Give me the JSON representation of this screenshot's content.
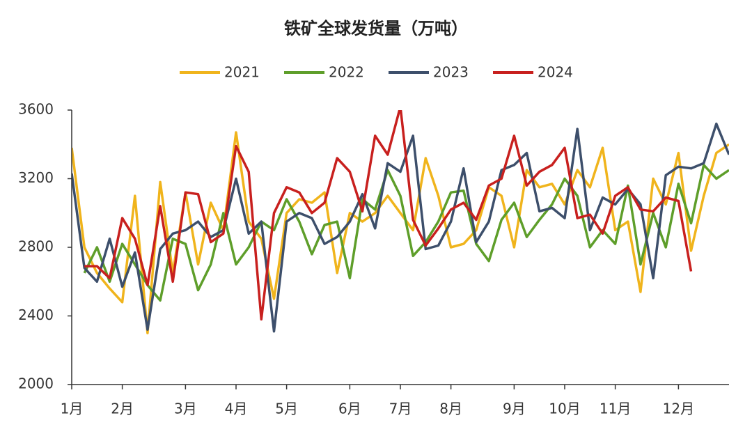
{
  "chart_data": {
    "type": "line",
    "title": "铁矿全球发货量（万吨）",
    "categories": [
      "1月",
      null,
      null,
      null,
      "2月",
      null,
      null,
      null,
      null,
      "3月",
      null,
      null,
      null,
      "4月",
      null,
      null,
      null,
      "5月",
      null,
      null,
      null,
      null,
      "6月",
      null,
      null,
      null,
      "7月",
      null,
      null,
      null,
      "8月",
      null,
      null,
      null,
      null,
      "9月",
      null,
      null,
      null,
      "10月",
      null,
      null,
      null,
      "11月",
      null,
      null,
      null,
      null,
      "12月",
      null,
      null,
      null,
      null
    ],
    "series": [
      {
        "name": "2021",
        "color": "#f0b41c",
        "values": [
          3380,
          2800,
          2650,
          2560,
          2480,
          3100,
          2300,
          3180,
          2650,
          3120,
          2700,
          3060,
          2900,
          3470,
          2950,
          2850,
          2500,
          3000,
          3080,
          3060,
          3120,
          2650,
          3000,
          2950,
          3000,
          3100,
          3000,
          2900,
          3320,
          3100,
          2800,
          2820,
          2900,
          3150,
          3100,
          2800,
          3250,
          3150,
          3170,
          3050,
          3250,
          3150,
          3380,
          2900,
          2950,
          2540,
          3200,
          3050,
          3350,
          2780,
          3100,
          3350,
          3400
        ]
      },
      {
        "name": "2022",
        "color": "#5e9e2a",
        "values": [
          null,
          2650,
          2800,
          2600,
          2820,
          2700,
          2580,
          2490,
          2850,
          2820,
          2550,
          2700,
          3000,
          2700,
          2800,
          2950,
          2900,
          3080,
          2950,
          2760,
          2930,
          2950,
          2620,
          3080,
          3020,
          3250,
          3100,
          2750,
          2830,
          2950,
          3120,
          3130,
          2820,
          2720,
          2960,
          3060,
          2860,
          2960,
          3050,
          3200,
          3100,
          2800,
          2900,
          2820,
          3160,
          2700,
          3000,
          2800,
          3170,
          2940,
          3280,
          3200,
          3250
        ]
      },
      {
        "name": "2023",
        "color": "#3d4f6b",
        "values": [
          3230,
          2680,
          2600,
          2850,
          2570,
          2770,
          2320,
          2790,
          2880,
          2900,
          2950,
          2860,
          2900,
          3200,
          2880,
          2950,
          2310,
          2950,
          3000,
          2970,
          2820,
          2860,
          2950,
          3110,
          2910,
          3290,
          3240,
          3450,
          2790,
          2810,
          2950,
          3260,
          2830,
          2950,
          3250,
          3280,
          3350,
          3010,
          3030,
          2970,
          3490,
          2900,
          3090,
          3050,
          3140,
          3050,
          2620,
          3220,
          3270,
          3260,
          3290,
          3520,
          3340
        ]
      },
      {
        "name": "2024",
        "color": "#c8201e",
        "values": [
          null,
          2690,
          2690,
          2620,
          2970,
          2850,
          2580,
          3040,
          2600,
          3120,
          3110,
          2830,
          2880,
          3390,
          3240,
          2380,
          3000,
          3150,
          3120,
          3000,
          3060,
          3320,
          3240,
          3010,
          3450,
          3340,
          3620,
          2960,
          2810,
          2910,
          3020,
          3060,
          2960,
          3160,
          3200,
          3450,
          3160,
          3240,
          3280,
          3380,
          2970,
          2990,
          2880,
          3100,
          3150,
          3020,
          3010,
          3090,
          3070,
          2660,
          null,
          null,
          null
        ]
      }
    ],
    "ylim": [
      2000,
      3600
    ],
    "yticks": [
      2000,
      2400,
      2800,
      3200,
      3600
    ],
    "legend": "top"
  }
}
